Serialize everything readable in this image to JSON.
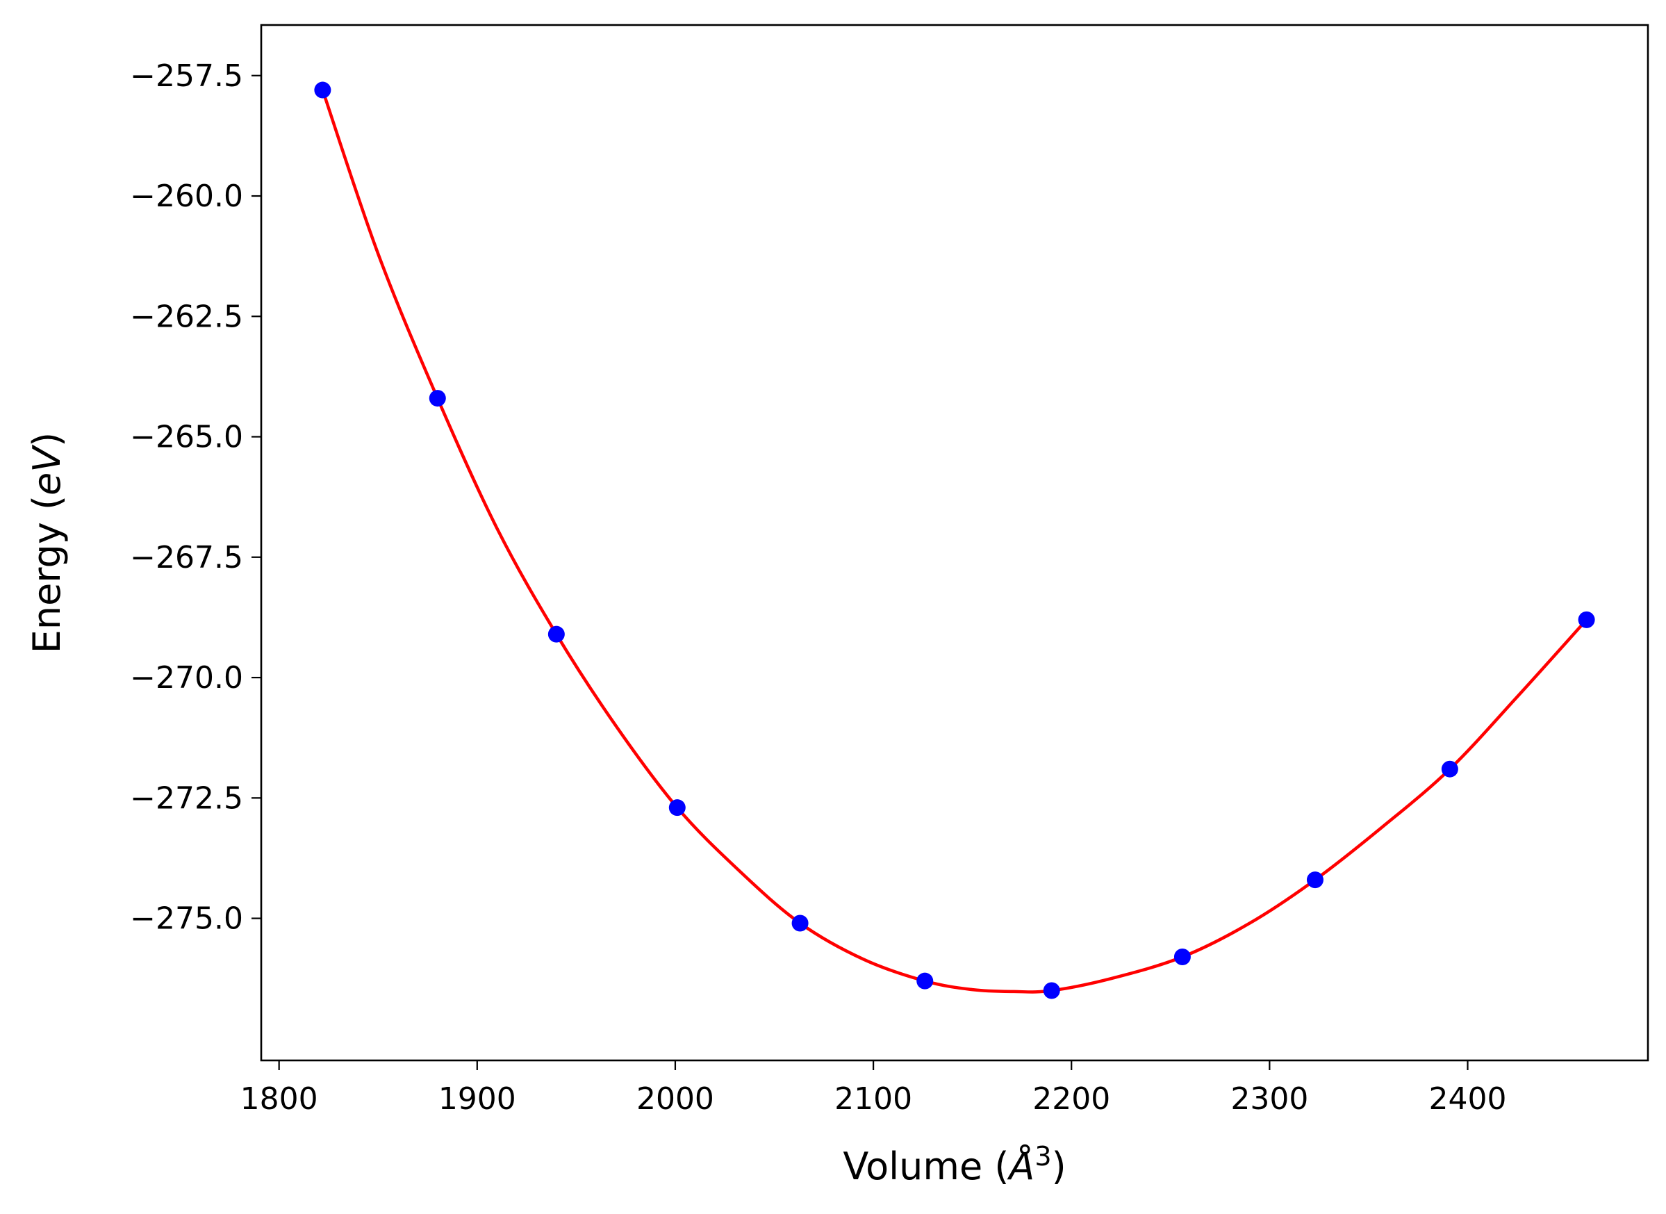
{
  "chart_data": {
    "type": "scatter",
    "title": "",
    "xlabel": {
      "prefix": "Volume (",
      "italic": "Å",
      "sup": "3",
      "suffix": ")"
    },
    "ylabel": {
      "prefix": "Energy (",
      "italic": "eV",
      "suffix": ")"
    },
    "xlim": [
      1791,
      2491
    ],
    "ylim": [
      -277.95,
      -256.45
    ],
    "xticks": [
      1800,
      1900,
      2000,
      2100,
      2200,
      2300,
      2400
    ],
    "xtick_labels": [
      "1800",
      "1900",
      "2000",
      "2100",
      "2200",
      "2300",
      "2400"
    ],
    "yticks": [
      -257.5,
      -260.0,
      -262.5,
      -265.0,
      -267.5,
      -270.0,
      -272.5,
      -275.0
    ],
    "ytick_labels": [
      "−257.5",
      "−260.0",
      "−262.5",
      "−265.0",
      "−267.5",
      "−270.0",
      "−272.5",
      "−275.0"
    ],
    "grid": false,
    "series": [
      {
        "kind": "points",
        "color": "#0000ff",
        "x": [
          1822,
          1880,
          1940,
          2001,
          2063,
          2126,
          2190,
          2256,
          2323,
          2391,
          2460
        ],
        "y": [
          -257.8,
          -264.2,
          -269.1,
          -272.7,
          -275.1,
          -276.3,
          -276.5,
          -275.8,
          -274.2,
          -271.9,
          -268.8
        ]
      },
      {
        "kind": "fit-line",
        "color": "#ff0000",
        "x": [
          1822,
          1850,
          1880,
          1910,
          1940,
          1970,
          2001,
          2032,
          2063,
          2095,
          2126,
          2150,
          2171,
          2190,
          2220,
          2256,
          2290,
          2323,
          2357,
          2391,
          2425,
          2460
        ],
        "y": [
          -257.8,
          -261.2,
          -264.2,
          -266.9,
          -269.1,
          -271.0,
          -272.7,
          -274.0,
          -275.1,
          -275.85,
          -276.3,
          -276.48,
          -276.52,
          -276.5,
          -276.25,
          -275.8,
          -275.1,
          -274.2,
          -273.1,
          -271.9,
          -270.4,
          -268.8
        ]
      }
    ]
  }
}
